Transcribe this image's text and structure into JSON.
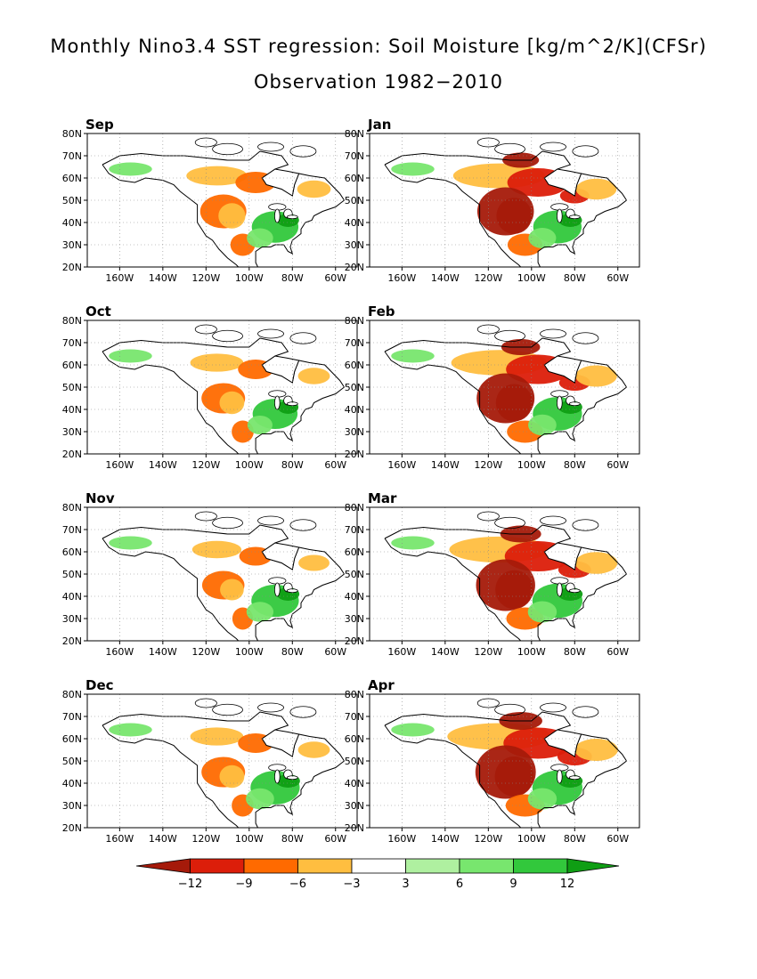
{
  "title_line1": "Monthly Nino3.4 SST regression: Soil Moisture [kg/m^2/K](CFSr)",
  "title_line2": "Observation 1982−2010",
  "lat_labels": [
    "80N",
    "70N",
    "60N",
    "50N",
    "40N",
    "30N",
    "20N"
  ],
  "lon_labels": [
    "160W",
    "140W",
    "120W",
    "100W",
    "80W",
    "60W"
  ],
  "panels": [
    {
      "month": "Sep",
      "intensity": 0.45,
      "east_green": 0.7
    },
    {
      "month": "Jan",
      "intensity": 0.85,
      "east_green": 0.8
    },
    {
      "month": "Oct",
      "intensity": 0.35,
      "east_green": 0.6
    },
    {
      "month": "Feb",
      "intensity": 0.9,
      "east_green": 0.85
    },
    {
      "month": "Nov",
      "intensity": 0.3,
      "east_green": 0.75
    },
    {
      "month": "Mar",
      "intensity": 0.95,
      "east_green": 0.9
    },
    {
      "month": "Dec",
      "intensity": 0.35,
      "east_green": 0.85
    },
    {
      "month": "Apr",
      "intensity": 1.0,
      "east_green": 0.9
    }
  ],
  "colorbar": {
    "labels": [
      "−12",
      "−9",
      "−6",
      "−3",
      "3",
      "6",
      "9",
      "12"
    ],
    "colors": [
      "#a51a0a",
      "#dc1e0a",
      "#ff6a00",
      "#ffbe40",
      "#ffffff",
      "#aff0a0",
      "#78e66e",
      "#32c83c",
      "#0f9e14"
    ]
  }
}
